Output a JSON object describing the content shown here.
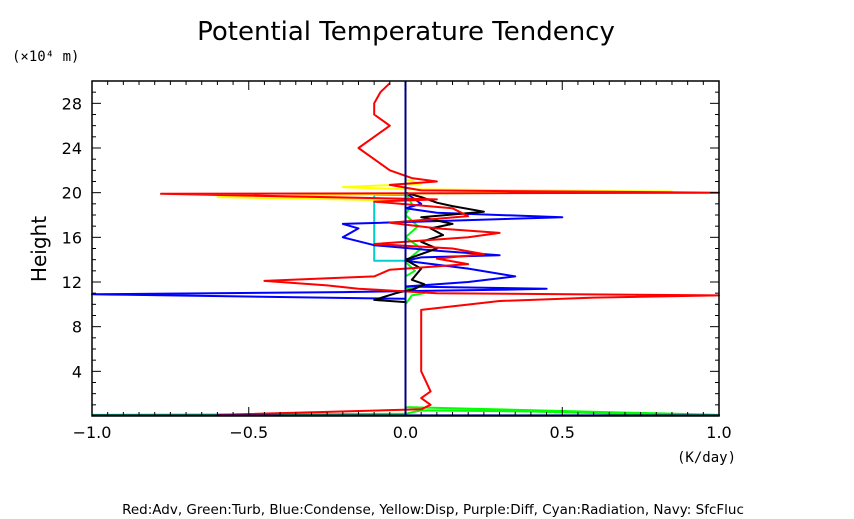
{
  "chart_data": {
    "type": "line",
    "title": "Potential Temperature Tendency",
    "xlabel_unit": "(K/day)",
    "ylabel": "Height",
    "yunit": "(×10⁴ m)",
    "xlim": [
      -1.0,
      1.0
    ],
    "ylim": [
      0,
      30
    ],
    "xticks": [
      "−1.0",
      "−0.5",
      "0.0",
      "0.5",
      "1.0"
    ],
    "yticks": [
      "4",
      "8",
      "12",
      "16",
      "20",
      "24",
      "28"
    ],
    "grid": false,
    "legend_text": "Red:Adv, Green:Turb, Blue:Condense, Yellow:Disp, Purple:Diff, Cyan:Radiation, Navy: SfcFluc",
    "series": [
      {
        "name": "Turb",
        "color": "#00ff00",
        "points": [
          [
            -1.0,
            0.1
          ],
          [
            0.0,
            0.2
          ],
          [
            0.05,
            0.5
          ],
          [
            0.4,
            0.4
          ],
          [
            0.7,
            0.2
          ],
          [
            1.0,
            0.1
          ],
          [
            0.0,
            0.8
          ],
          [
            0.0,
            10
          ],
          [
            0.02,
            10.8
          ],
          [
            0.06,
            11
          ],
          [
            0.0,
            11.5
          ],
          [
            0.0,
            12.5
          ],
          [
            0.03,
            13
          ],
          [
            0.0,
            13.8
          ],
          [
            0.05,
            15
          ],
          [
            0.0,
            16
          ],
          [
            0.04,
            17
          ],
          [
            0.0,
            18
          ],
          [
            0.02,
            19
          ],
          [
            0.0,
            20
          ],
          [
            0.0,
            30
          ]
        ]
      },
      {
        "name": "Radiation",
        "color": "#00cfcf",
        "points": [
          [
            0.0,
            0
          ],
          [
            0.0,
            13.9
          ],
          [
            -0.1,
            13.9
          ],
          [
            -0.1,
            19.8
          ],
          [
            0.0,
            19.8
          ],
          [
            0.0,
            30
          ]
        ]
      },
      {
        "name": "Condense",
        "color": "#0000ff",
        "points": [
          [
            0.0,
            0
          ],
          [
            0.0,
            10.5
          ],
          [
            -1.0,
            10.9
          ],
          [
            -0.2,
            11.1
          ],
          [
            0.3,
            11.3
          ],
          [
            0.45,
            11.4
          ],
          [
            0.0,
            11.6
          ],
          [
            0.2,
            12
          ],
          [
            0.35,
            12.5
          ],
          [
            0.2,
            13.2
          ],
          [
            0.0,
            13.9
          ],
          [
            0.05,
            14.2
          ],
          [
            0.3,
            14.4
          ],
          [
            0.1,
            14.8
          ],
          [
            -0.1,
            15.3
          ],
          [
            -0.2,
            16
          ],
          [
            -0.15,
            16.8
          ],
          [
            -0.2,
            17.2
          ],
          [
            0.15,
            17.5
          ],
          [
            0.5,
            17.8
          ],
          [
            0.1,
            18.2
          ],
          [
            0.0,
            18.6
          ],
          [
            0.05,
            19
          ],
          [
            0.0,
            20
          ],
          [
            0.0,
            30
          ]
        ]
      },
      {
        "name": "Disp",
        "color": "#ffff00",
        "points": [
          [
            0.0,
            19.3
          ],
          [
            -0.6,
            19.6
          ],
          [
            0.0,
            19.9
          ],
          [
            0.85,
            20.1
          ],
          [
            0.0,
            20.3
          ],
          [
            -0.2,
            20.5
          ],
          [
            0.05,
            20.8
          ],
          [
            0.0,
            21.2
          ]
        ]
      },
      {
        "name": "Diff",
        "color": "#000000",
        "points": [
          [
            0.0,
            0
          ],
          [
            0.0,
            10.2
          ],
          [
            -0.1,
            10.4
          ],
          [
            -0.03,
            11
          ],
          [
            0.03,
            11.4
          ],
          [
            0.06,
            11.8
          ],
          [
            0.02,
            12.2
          ],
          [
            0.05,
            13.2
          ],
          [
            0.0,
            14
          ],
          [
            0.1,
            15
          ],
          [
            0.05,
            15.6
          ],
          [
            0.12,
            16.2
          ],
          [
            0.08,
            16.8
          ],
          [
            0.15,
            17.2
          ],
          [
            0.05,
            17.8
          ],
          [
            0.25,
            18.3
          ],
          [
            0.15,
            18.8
          ],
          [
            0.1,
            19.1
          ],
          [
            0.05,
            19.6
          ],
          [
            0.0,
            20
          ],
          [
            0.0,
            30
          ]
        ]
      },
      {
        "name": "Adv",
        "color": "#ff0000",
        "points": [
          [
            -0.6,
            0.1
          ],
          [
            0.05,
            0.6
          ],
          [
            0.08,
            1
          ],
          [
            0.05,
            1.6
          ],
          [
            0.08,
            2.2
          ],
          [
            0.05,
            4
          ],
          [
            0.05,
            6
          ],
          [
            0.05,
            8
          ],
          [
            0.05,
            9.5
          ],
          [
            0.3,
            10.3
          ],
          [
            0.6,
            10.6
          ],
          [
            1.0,
            10.8
          ],
          [
            0.1,
            11
          ],
          [
            -0.15,
            11.4
          ],
          [
            -0.25,
            11.7
          ],
          [
            -0.45,
            12.1
          ],
          [
            -0.1,
            12.5
          ],
          [
            -0.05,
            13.1
          ],
          [
            0.2,
            13.6
          ],
          [
            0.1,
            14.1
          ],
          [
            0.25,
            14.5
          ],
          [
            0.15,
            15
          ],
          [
            -0.1,
            15.4
          ],
          [
            0.2,
            16
          ],
          [
            0.3,
            16.4
          ],
          [
            0.1,
            16.8
          ],
          [
            -0.05,
            17.3
          ],
          [
            0.2,
            17.9
          ],
          [
            0.15,
            18.6
          ],
          [
            -0.1,
            19.2
          ],
          [
            0.1,
            19.4
          ],
          [
            -0.78,
            19.9
          ],
          [
            1.0,
            20
          ],
          [
            0.05,
            20.2
          ],
          [
            -0.05,
            20.7
          ],
          [
            0.1,
            21
          ],
          [
            0.02,
            21.3
          ],
          [
            -0.05,
            22
          ],
          [
            -0.1,
            23
          ],
          [
            -0.15,
            24
          ],
          [
            -0.1,
            25
          ],
          [
            -0.05,
            26
          ],
          [
            -0.1,
            27
          ],
          [
            -0.1,
            28
          ],
          [
            -0.08,
            29
          ],
          [
            -0.05,
            29.8
          ]
        ]
      },
      {
        "name": "SfcFluc",
        "color": "#000080",
        "points": [
          [
            -1.0,
            0.05
          ],
          [
            1.0,
            0.05
          ],
          [
            0.0,
            0.05
          ],
          [
            0.0,
            30
          ]
        ]
      }
    ]
  }
}
